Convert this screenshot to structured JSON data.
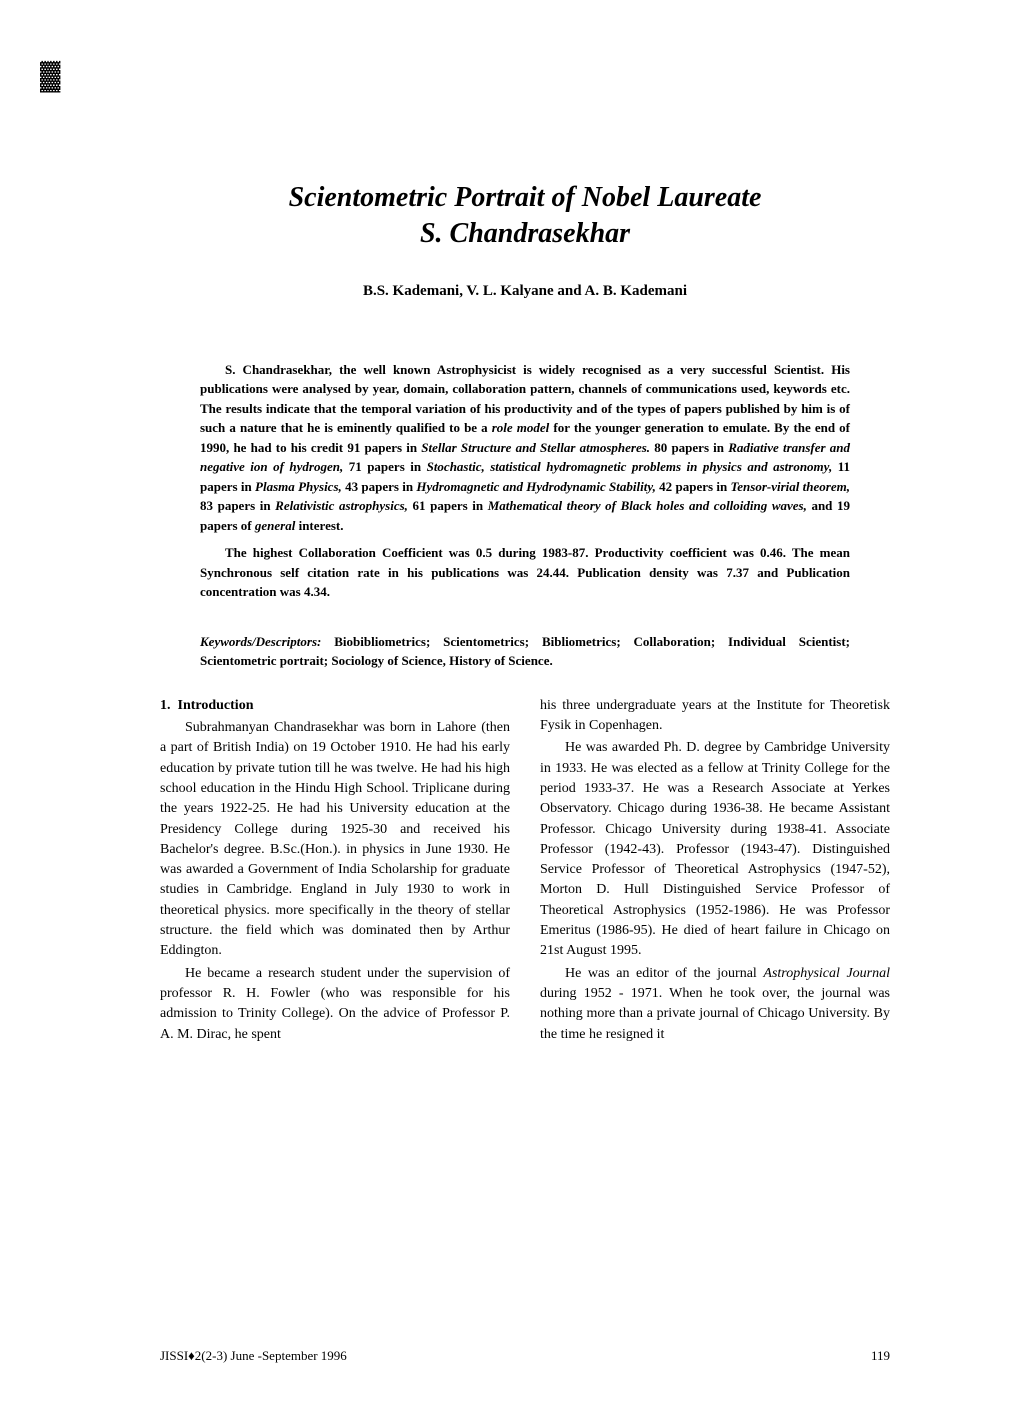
{
  "decorativeMark": "▓",
  "title": {
    "line1": "Scientometric Portrait of Nobel Laureate",
    "line2": "S. Chandrasekhar"
  },
  "authors": "B.S. Kademani, V. L. Kalyane and A. B. Kademani",
  "abstract": {
    "para1_a": "S. Chandrasekhar, the well known Astrophysicist is widely recognised as a very successful Scientist. His publications were analysed by year, domain, collaboration pattern, channels of communications used, keywords etc. The results indicate that the temporal variation of his productivity and of the types of papers published by him is of such a nature that he is eminently qualified to be a ",
    "para1_b": "role model",
    "para1_c": " for the younger generation to emulate. By the end of 1990, he had to his credit 91 papers in ",
    "para1_d": "Stellar Structure and Stellar atmospheres.",
    "para1_e": " 80 papers in ",
    "para1_f": "Radiative transfer and negative ion of hydrogen,",
    "para1_g": " 71 papers in ",
    "para1_h": "Stochastic, statistical hydromagnetic problems in physics and astronomy,",
    "para1_i": " 11 papers in ",
    "para1_j": "Plasma Physics,",
    "para1_k": " 43 papers in ",
    "para1_l": "Hydromagnetic and Hydrodynamic Stability,",
    "para1_m": " 42 papers in ",
    "para1_n": "Tensor-virial theorem,",
    "para1_o": " 83 papers in ",
    "para1_p": "Relativistic astrophysics,",
    "para1_q": " 61 papers in ",
    "para1_r": "Mathematical theory of Black holes and colloiding waves,",
    "para1_s": " and 19 papers of ",
    "para1_t": "general",
    "para1_u": " interest.",
    "para2": "The highest Collaboration Coefficient was 0.5 during 1983-87. Productivity coefficient was 0.46. The mean Synchronous self citation rate in his publications was 24.44. Publication density was 7.37 and Publication concentration was 4.34."
  },
  "keywords": {
    "label": "Keywords/Descriptors:",
    "text": " Biobibliometrics; Scientometrics; Bibliometrics; Collaboration; Individual Scientist; Scientometric portrait; Sociology of Science, History of Science."
  },
  "section": {
    "number": "1.",
    "title": "Introduction"
  },
  "body": {
    "col1_p1": "Subrahmanyan Chandrasekhar was born in Lahore (then a part of British India) on 19 October 1910. He had his early education by private tution till he was twelve. He had his high school education in the Hindu High School. Triplicane during the years 1922-25. He had his University education at the Presidency College during 1925-30 and received his Bachelor's degree. B.Sc.(Hon.). in physics in June 1930. He was awarded a Government of India Scholarship for graduate studies in Cambridge. England in July 1930 to work in theoretical physics. more specifically in the theory of stellar structure. the field which was dominated then by Arthur Eddington.",
    "col1_p2": "He became a research student under the supervision of professor R. H. Fowler (who was responsible for his admission to Trinity College). On the advice of Professor P. A. M. Dirac, he spent",
    "col2_p1": "his three undergraduate years at the Institute for Theoretisk Fysik in Copenhagen.",
    "col2_p2": "He was awarded Ph. D. degree by Cambridge University in 1933. He was elected as a fellow at Trinity College for the period 1933-37. He was a Research Associate at Yerkes Observatory. Chicago during 1936-38. He became Assistant Professor. Chicago University during 1938-41. Associate Professor (1942-43). Professor (1943-47). Distinguished Service Professor of Theoretical Astrophysics (1947-52), Morton D. Hull Distinguished Service Professor of Theoretical Astrophysics (1952-1986). He was Professor Emeritus (1986-95). He died of heart failure in Chicago on 21st August 1995.",
    "col2_p3_a": "He was an editor of the journal ",
    "col2_p3_b": "Astrophysical Journal",
    "col2_p3_c": " during 1952 - 1971. When he took over, the journal was nothing more than a private journal of Chicago University. By the time he resigned it"
  },
  "footer": {
    "left": "JISSI♦2(2-3) June -September 1996",
    "pageNumber": "119"
  }
}
